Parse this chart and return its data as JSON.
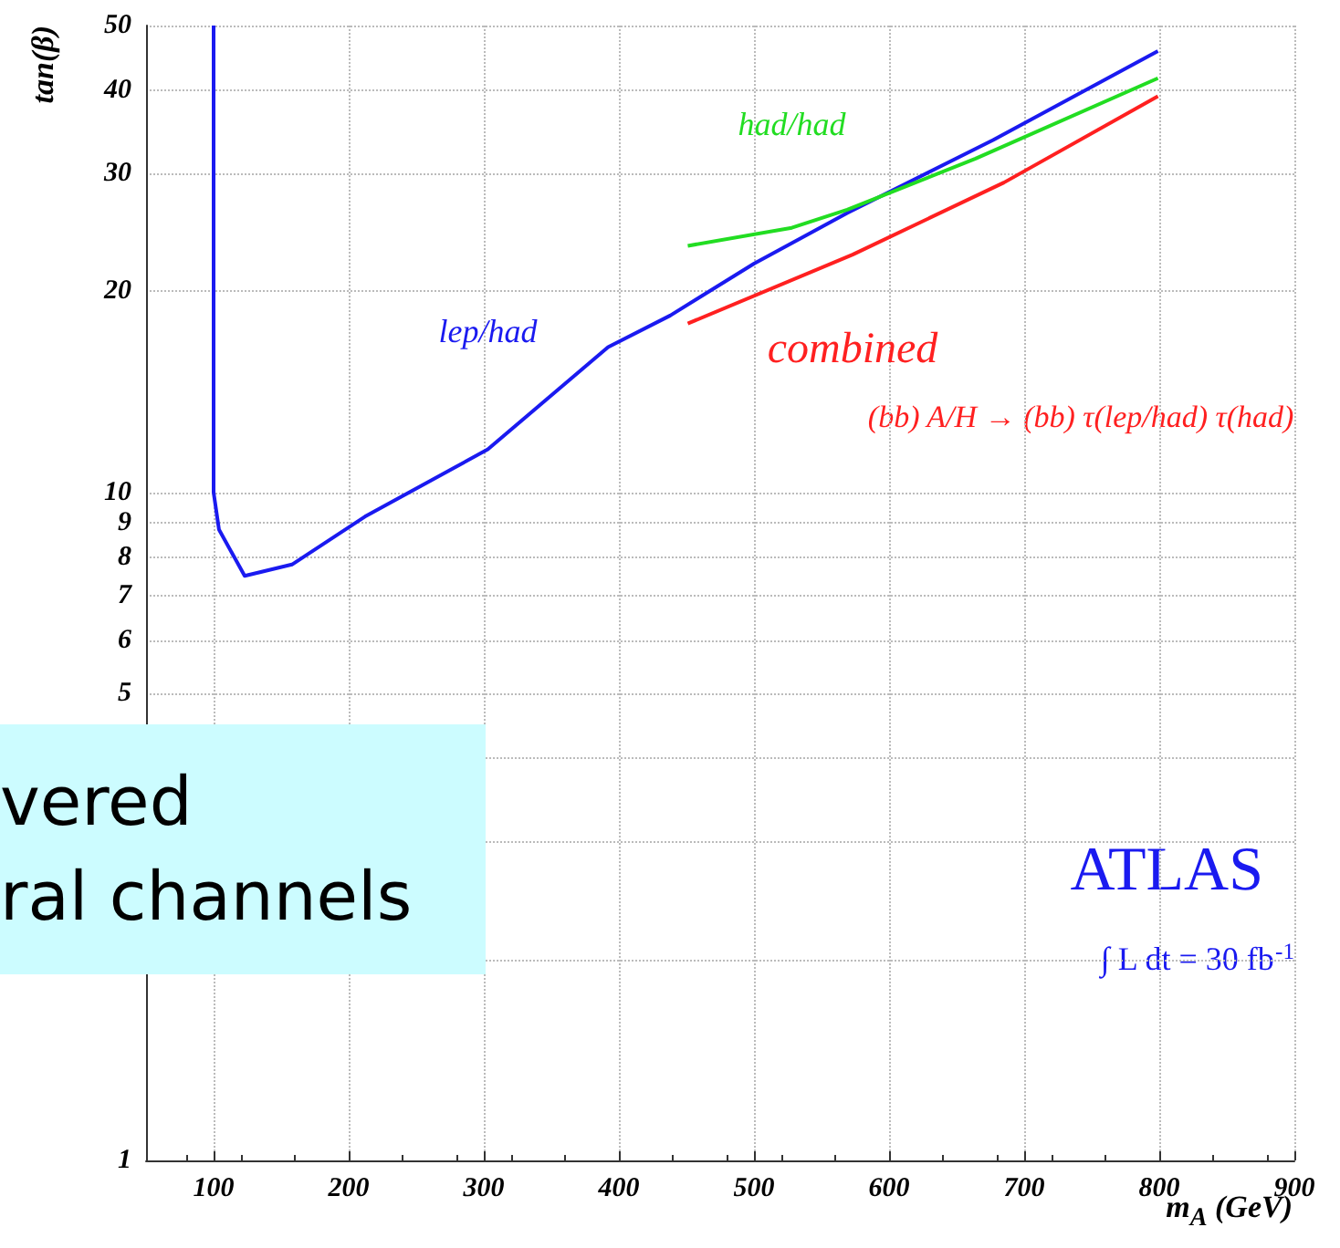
{
  "chart_data": {
    "type": "line",
    "xlabel": "m$_{A}$ (GeV)",
    "ylabel": "tan(β)",
    "log": "y",
    "xlim": [
      50,
      900
    ],
    "xticks": [
      100,
      200,
      300,
      400,
      500,
      600,
      700,
      800,
      900
    ],
    "ylim": [
      1,
      50
    ],
    "yticks": [
      1,
      {
        "value": 2,
        "label": null
      },
      {
        "value": 3,
        "label": null
      },
      {
        "value": 4,
        "label": null
      },
      5,
      6,
      7,
      8,
      9,
      10,
      20,
      30,
      40,
      50
    ],
    "grid": true,
    "legend": false,
    "series": [
      {
        "name": "lep/had",
        "color": "#1a1af0",
        "x": [
          100,
          100,
          100,
          100,
          104,
          123,
          158,
          212,
          303,
          392,
          438,
          500,
          569,
          677,
          799
        ],
        "values": [
          50,
          30,
          20,
          10,
          8.8,
          7.5,
          7.8,
          9.2,
          11.6,
          16.5,
          18.4,
          22,
          26.2,
          33.7,
          45.8
        ]
      },
      {
        "name": "had/had",
        "color": "#22dd22",
        "x": [
          451,
          528,
          569,
          664,
          799
        ],
        "values": [
          23.4,
          24.9,
          26.5,
          31.6,
          41.7
        ]
      },
      {
        "name": "combined",
        "color": "#ff2020",
        "x": [
          451,
          573,
          685,
          799
        ],
        "values": [
          17.9,
          22.7,
          29.1,
          39.2
        ]
      }
    ],
    "annotations": [
      "(bb) A/H → (bb) τ(lep/had) τ(had)",
      "ATLAS",
      "∫ L dt = 30 fb$^{-1}$",
      "vered",
      "ral channels"
    ]
  }
}
